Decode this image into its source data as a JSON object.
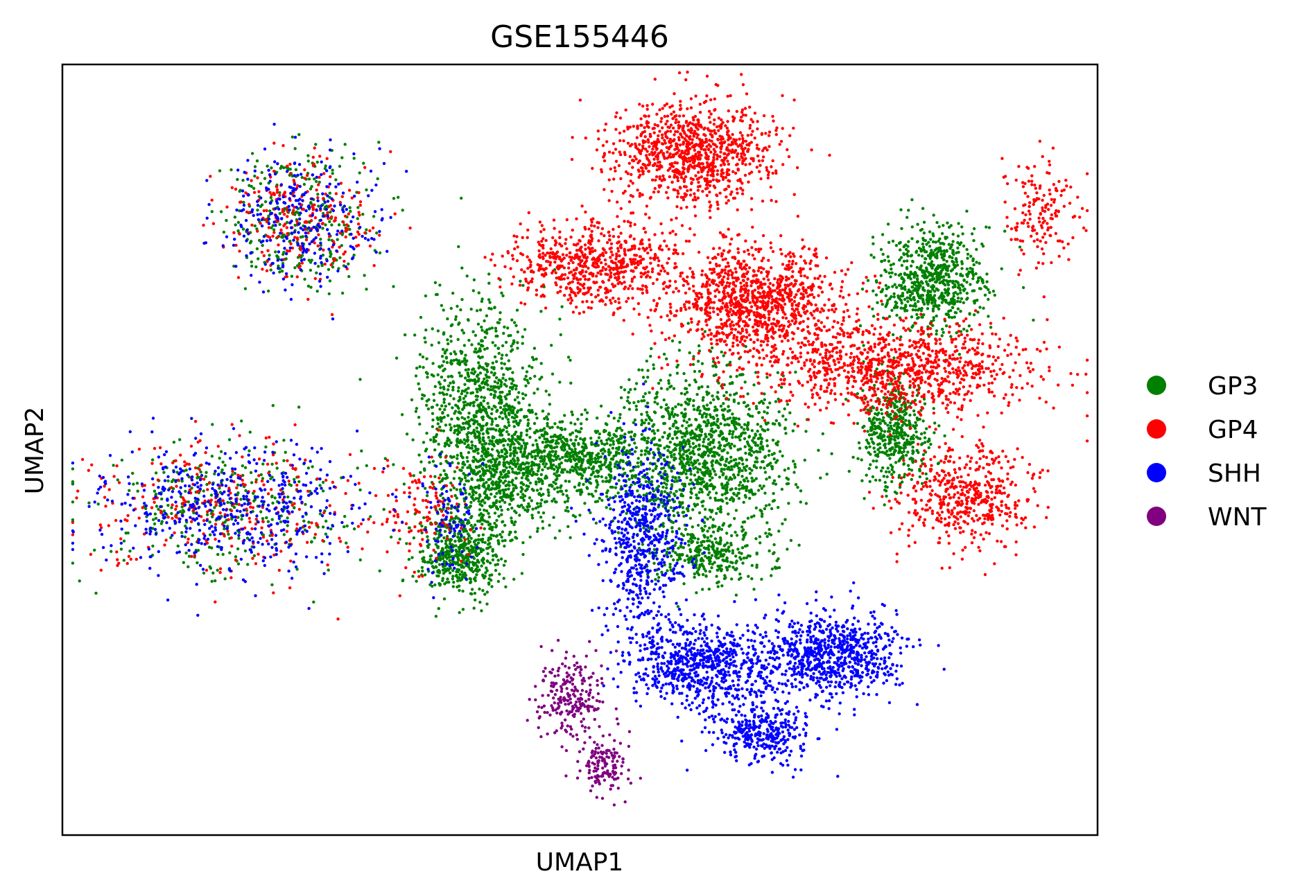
{
  "chart_data": {
    "type": "scatter",
    "title": "GSE155446",
    "xlabel": "UMAP1",
    "ylabel": "UMAP2",
    "xlim": [
      0,
      100
    ],
    "ylim": [
      0,
      100
    ],
    "grid": false,
    "ticks": false,
    "legend_placement": "right",
    "series": [
      {
        "name": "GP3",
        "color": "#008000",
        "clusters": [
          {
            "center": [
              40.0,
              55.0
            ],
            "spread": [
              5.0,
              12.0
            ],
            "n": 900
          },
          {
            "center": [
              38.5,
              36.5
            ],
            "spread": [
              3.5,
              4.5
            ],
            "n": 500
          },
          {
            "center": [
              43.0,
              47.5
            ],
            "spread": [
              4.5,
              7.0
            ],
            "n": 600
          },
          {
            "center": [
              50.0,
              49.0
            ],
            "spread": [
              5.0,
              4.0
            ],
            "n": 500
          },
          {
            "center": [
              62.0,
              49.5
            ],
            "spread": [
              7.0,
              9.0
            ],
            "n": 1300
          },
          {
            "center": [
              80.5,
              52.0
            ],
            "spread": [
              3.0,
              5.5
            ],
            "n": 450
          },
          {
            "center": [
              84.0,
              72.0
            ],
            "spread": [
              4.5,
              5.5
            ],
            "n": 700
          },
          {
            "center": [
              63.0,
              36.5
            ],
            "spread": [
              5.0,
              3.5
            ],
            "n": 300
          },
          {
            "center": [
              23.0,
              80.0
            ],
            "spread": [
              6.0,
              7.0
            ],
            "n": 300
          },
          {
            "center": [
              16.0,
              42.5
            ],
            "spread": [
              11.0,
              7.0
            ],
            "n": 350
          }
        ]
      },
      {
        "name": "GP4",
        "color": "#ff0000",
        "clusters": [
          {
            "center": [
              61.0,
              88.5
            ],
            "spread": [
              6.5,
              5.5
            ],
            "n": 950
          },
          {
            "center": [
              51.5,
              74.0
            ],
            "spread": [
              6.5,
              4.5
            ],
            "n": 650
          },
          {
            "center": [
              67.0,
              69.0
            ],
            "spread": [
              7.0,
              6.0
            ],
            "n": 1100
          },
          {
            "center": [
              80.5,
              60.5
            ],
            "spread": [
              11.0,
              5.0
            ],
            "n": 1000
          },
          {
            "center": [
              87.0,
              44.0
            ],
            "spread": [
              5.5,
              5.5
            ],
            "n": 500
          },
          {
            "center": [
              94.5,
              80.5
            ],
            "spread": [
              3.0,
              6.0
            ],
            "n": 160
          },
          {
            "center": [
              23.0,
              80.0
            ],
            "spread": [
              6.0,
              7.0
            ],
            "n": 250
          },
          {
            "center": [
              16.0,
              42.5
            ],
            "spread": [
              11.0,
              7.0
            ],
            "n": 300
          },
          {
            "center": [
              35.0,
              42.0
            ],
            "spread": [
              4.0,
              6.0
            ],
            "n": 120
          }
        ]
      },
      {
        "name": "SHH",
        "color": "#0000ff",
        "clusters": [
          {
            "center": [
              56.0,
              38.0
            ],
            "spread": [
              3.5,
              10.0
            ],
            "n": 600
          },
          {
            "center": [
              61.5,
              22.0
            ],
            "spread": [
              5.5,
              4.5
            ],
            "n": 700
          },
          {
            "center": [
              67.5,
              13.5
            ],
            "spread": [
              4.0,
              3.5
            ],
            "n": 350
          },
          {
            "center": [
              74.0,
              23.5
            ],
            "spread": [
              6.0,
              4.5
            ],
            "n": 800
          },
          {
            "center": [
              23.0,
              80.0
            ],
            "spread": [
              6.0,
              7.0
            ],
            "n": 280
          },
          {
            "center": [
              16.0,
              42.5
            ],
            "spread": [
              11.0,
              7.0
            ],
            "n": 480
          },
          {
            "center": [
              37.5,
              41.0
            ],
            "spread": [
              2.5,
              7.0
            ],
            "n": 90
          }
        ]
      },
      {
        "name": "WNT",
        "color": "#800080",
        "clusters": [
          {
            "center": [
              49.0,
              18.0
            ],
            "spread": [
              2.5,
              5.0
            ],
            "n": 220
          },
          {
            "center": [
              52.5,
              9.0
            ],
            "spread": [
              2.0,
              3.0
            ],
            "n": 140
          }
        ]
      }
    ]
  }
}
